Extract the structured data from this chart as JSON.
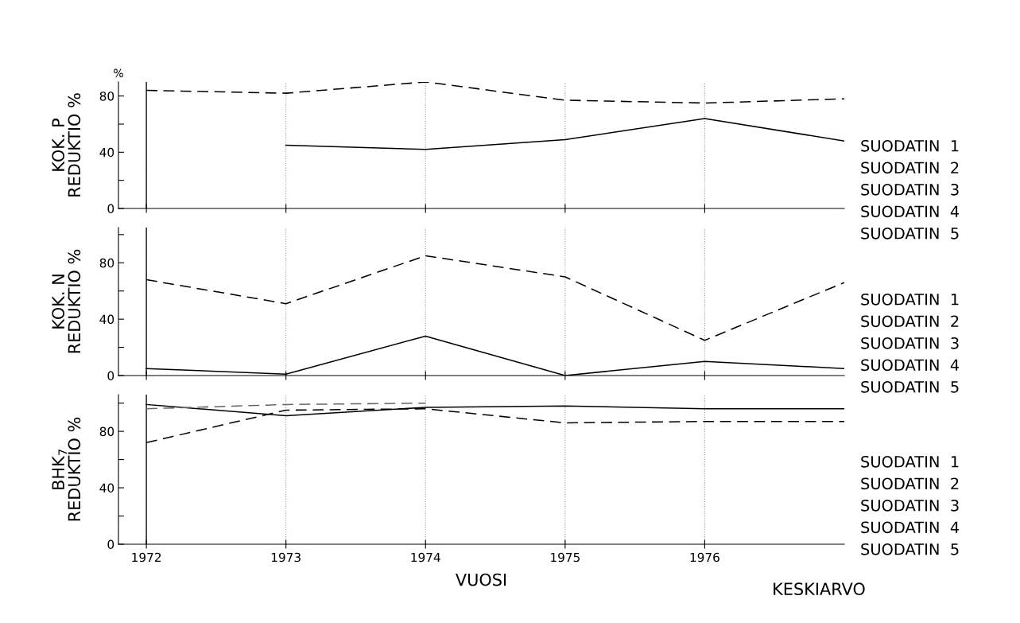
{
  "chart_data": [
    {
      "type": "line",
      "ylabel": "KOK. P\nREDUKTIO %",
      "x": [
        1972,
        1973,
        1974,
        1975,
        1976,
        1977
      ],
      "series": [
        {
          "color": "#000000",
          "line_style": "dashed",
          "values": [
            84,
            82,
            90,
            77,
            75,
            78
          ]
        },
        {
          "color": "#000000",
          "line_style": "solid",
          "values": [
            null,
            45,
            42,
            49,
            64,
            48
          ]
        }
      ],
      "xlim": [
        1971.8,
        1977.0
      ],
      "xticks": [
        1972,
        1973,
        1974,
        1975,
        1976
      ],
      "ylim": [
        0,
        90
      ],
      "yticks": [
        0,
        {
          "value": 20,
          "label": null
        },
        40,
        {
          "value": 60,
          "label": null
        },
        80
      ],
      "grid": "x",
      "tick_labels": "y",
      "ref_lines": [
        {
          "axis": "x",
          "value": 1972,
          "color": "#000000"
        }
      ],
      "annotations": [
        "%",
        "SUODATIN  1",
        "SUODATIN  2",
        "SUODATIN  3",
        "SUODATIN  4",
        "SUODATIN  5"
      ]
    },
    {
      "type": "line",
      "ylabel": "KOK. N\nREDUKTIO %",
      "x": [
        1972,
        1973,
        1974,
        1975,
        1976,
        1977
      ],
      "series": [
        {
          "color": "#000000",
          "line_style": "dashed",
          "values": [
            68,
            51,
            85,
            70,
            25,
            66
          ]
        },
        {
          "color": "#000000",
          "line_style": "solid",
          "values": [
            5,
            1,
            28,
            0,
            10,
            5
          ]
        }
      ],
      "xlim": [
        1971.8,
        1977.0
      ],
      "xticks": [
        1972,
        1973,
        1974,
        1975,
        1976
      ],
      "ylim": [
        0,
        105
      ],
      "yticks": [
        0,
        {
          "value": 20,
          "label": null
        },
        40,
        {
          "value": 60,
          "label": null
        },
        80,
        {
          "value": 100,
          "label": null
        }
      ],
      "grid": "x",
      "tick_labels": "y",
      "ref_lines": [
        {
          "axis": "x",
          "value": 1972,
          "color": "#000000"
        }
      ],
      "annotations": [
        "SUODATIN  1",
        "SUODATIN  2",
        "SUODATIN  3",
        "SUODATIN  4",
        "SUODATIN  5"
      ]
    },
    {
      "type": "line",
      "ylabel": "BHK$_{7}$\nREDUKTIO %",
      "xlabel": "VUOSI",
      "x": [
        1972,
        1973,
        1974,
        1975,
        1976,
        1977
      ],
      "series": [
        {
          "color": "#000000",
          "line_style": "solid",
          "values": [
            99,
            91,
            97,
            98,
            96,
            96
          ]
        },
        {
          "color": "#000000",
          "line_style": "dashed",
          "values": [
            72,
            95,
            96,
            86,
            87,
            87
          ]
        },
        {
          "color": "#666666",
          "line_style": "dashed",
          "values": [
            96,
            99,
            100,
            null,
            null,
            null
          ]
        }
      ],
      "xlim": [
        1971.8,
        1977.0
      ],
      "xticks": [
        1972,
        1973,
        1974,
        1975,
        1976
      ],
      "ylim": [
        0,
        106
      ],
      "yticks": [
        0,
        {
          "value": 20,
          "label": null
        },
        40,
        {
          "value": 60,
          "label": null
        },
        80,
        {
          "value": 100,
          "label": null
        }
      ],
      "grid": "x",
      "ref_lines": [
        {
          "axis": "x",
          "value": 1972,
          "color": "#000000"
        }
      ],
      "annotations": [
        "KESKIARVO",
        "SUODATIN  1",
        "SUODATIN  2",
        "SUODATIN  3",
        "SUODATIN  4",
        "SUODATIN  5"
      ]
    }
  ]
}
